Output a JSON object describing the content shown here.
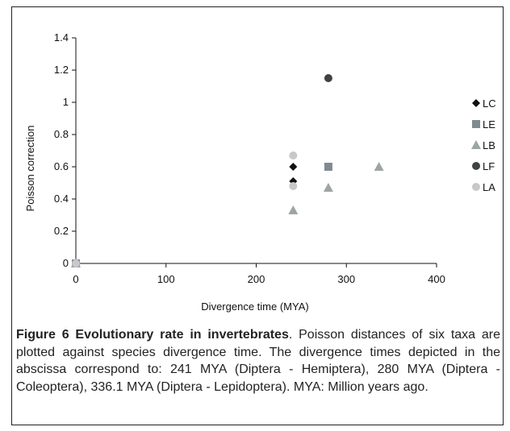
{
  "chart_data": {
    "type": "scatter",
    "xlabel": "Divergence time (MYA)",
    "ylabel": "Poisson correction",
    "xlim": [
      0,
      400
    ],
    "ylim": [
      0,
      1.4
    ],
    "x_ticks": [
      "0",
      "100",
      "200",
      "300",
      "400"
    ],
    "y_ticks": [
      "0",
      "0.2",
      "0.4",
      "0.6",
      "0.8",
      "1",
      "1.2",
      "1.4"
    ],
    "legend_position": "right",
    "series": [
      {
        "name": "LC",
        "marker": "diamond",
        "color": "#111111",
        "points": [
          [
            0,
            0
          ],
          [
            241,
            0.6
          ],
          [
            241,
            0.51
          ]
        ]
      },
      {
        "name": "LE",
        "marker": "square",
        "color": "#7f8b92",
        "points": [
          [
            0,
            0
          ],
          [
            280,
            0.6
          ]
        ]
      },
      {
        "name": "LB",
        "marker": "triangle",
        "color": "#9ea4a6",
        "points": [
          [
            0,
            0
          ],
          [
            241,
            0.33
          ],
          [
            280,
            0.47
          ],
          [
            336.1,
            0.6
          ]
        ]
      },
      {
        "name": "LF",
        "marker": "circle",
        "color": "#3e4342",
        "points": [
          [
            0,
            0
          ],
          [
            280,
            1.15
          ]
        ]
      },
      {
        "name": "LA",
        "marker": "circle",
        "color": "#c8c8cc",
        "points": [
          [
            0,
            0
          ],
          [
            241,
            0.67
          ],
          [
            241,
            0.48
          ]
        ]
      }
    ]
  },
  "caption": {
    "title": "Figure 6 Evolutionary rate in invertebrates",
    "text": ". Poisson distances of six taxa are plotted against species divergence time. The divergence times depicted in the abscissa correspond to: 241 MYA (Diptera - Hemiptera), 280 MYA (Diptera - Coleoptera), 336.1 MYA (Diptera - Lepidoptera). MYA: Million years ago."
  }
}
